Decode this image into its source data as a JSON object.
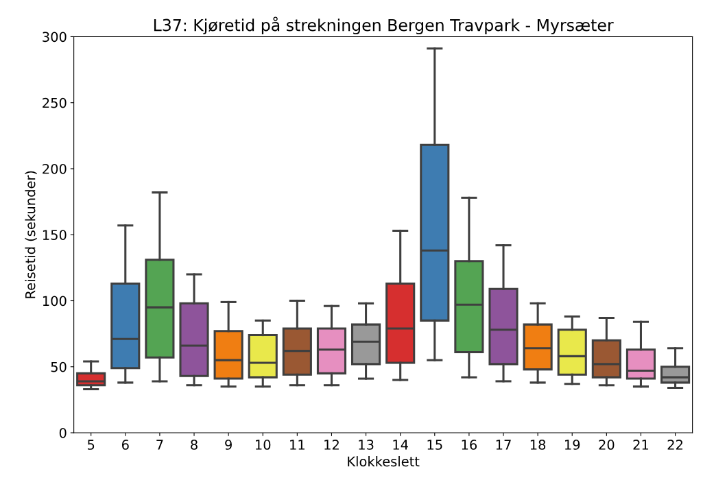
{
  "chart_data": {
    "type": "box",
    "title": "L37: Kjøretid på strekningen Bergen Travpark - Myrsæter",
    "xlabel": "Klokkeslett",
    "ylabel": "Reisetid (sekunder)",
    "categories": [
      "5",
      "6",
      "7",
      "8",
      "9",
      "10",
      "11",
      "12",
      "13",
      "14",
      "15",
      "16",
      "17",
      "18",
      "19",
      "20",
      "21",
      "22"
    ],
    "colors": [
      "#d62f2f",
      "#3e7cb1",
      "#54a453",
      "#8e549b",
      "#f07e12",
      "#e9e84b",
      "#9a5833",
      "#e68fc0",
      "#999999",
      "#d62f2f",
      "#3e7cb1",
      "#54a453",
      "#8e549b",
      "#f07e12",
      "#e9e84b",
      "#9a5833",
      "#e68fc0",
      "#999999"
    ],
    "boxes": [
      {
        "low": 33,
        "q1": 36,
        "median": 39,
        "q3": 45,
        "high": 54
      },
      {
        "low": 38,
        "q1": 49,
        "median": 71,
        "q3": 113,
        "high": 157
      },
      {
        "low": 39,
        "q1": 57,
        "median": 95,
        "q3": 131,
        "high": 182
      },
      {
        "low": 36,
        "q1": 43,
        "median": 66,
        "q3": 98,
        "high": 120
      },
      {
        "low": 35,
        "q1": 41,
        "median": 55,
        "q3": 77,
        "high": 99
      },
      {
        "low": 35,
        "q1": 42,
        "median": 53,
        "q3": 74,
        "high": 85
      },
      {
        "low": 36,
        "q1": 44,
        "median": 62,
        "q3": 79,
        "high": 100
      },
      {
        "low": 36,
        "q1": 45,
        "median": 63,
        "q3": 79,
        "high": 96
      },
      {
        "low": 41,
        "q1": 52,
        "median": 69,
        "q3": 82,
        "high": 98
      },
      {
        "low": 40,
        "q1": 53,
        "median": 79,
        "q3": 113,
        "high": 153
      },
      {
        "low": 55,
        "q1": 85,
        "median": 138,
        "q3": 218,
        "high": 291
      },
      {
        "low": 42,
        "q1": 61,
        "median": 97,
        "q3": 130,
        "high": 178
      },
      {
        "low": 39,
        "q1": 52,
        "median": 78,
        "q3": 109,
        "high": 142
      },
      {
        "low": 38,
        "q1": 48,
        "median": 64,
        "q3": 82,
        "high": 98
      },
      {
        "low": 37,
        "q1": 44,
        "median": 58,
        "q3": 78,
        "high": 88
      },
      {
        "low": 36,
        "q1": 42,
        "median": 52,
        "q3": 70,
        "high": 87
      },
      {
        "low": 35,
        "q1": 41,
        "median": 47,
        "q3": 63,
        "high": 84
      },
      {
        "low": 34,
        "q1": 38,
        "median": 42,
        "q3": 50,
        "high": 64
      }
    ],
    "ylim": [
      0,
      300
    ],
    "yticks": [
      0,
      50,
      100,
      150,
      200,
      250,
      300
    ]
  }
}
